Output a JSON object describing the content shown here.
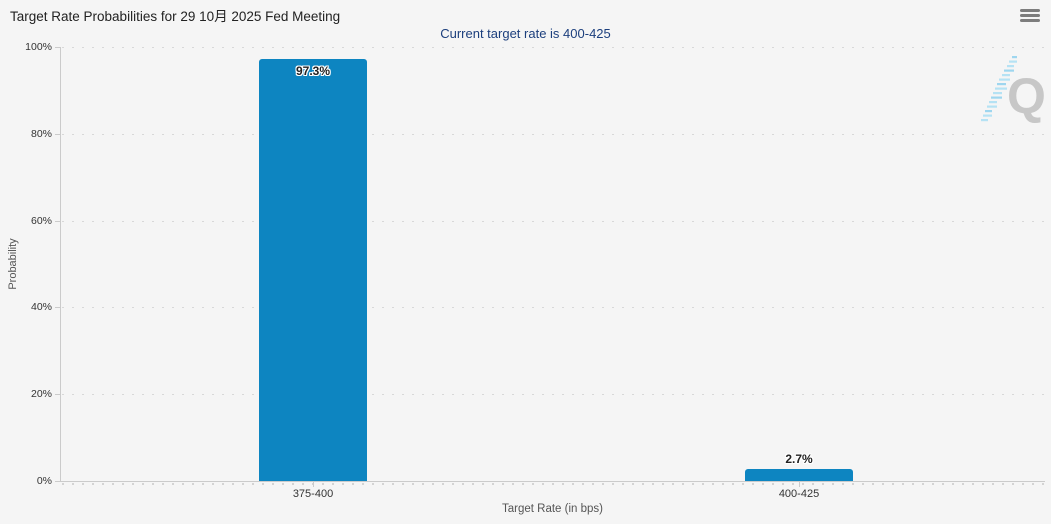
{
  "header": {
    "title": "Target Rate Probabilities for 29 10月 2025 Fed Meeting",
    "subtitle": "Current target rate is 400-425",
    "menu_icon": "hamburger-menu"
  },
  "chart_data": {
    "type": "bar",
    "title": "Target Rate Probabilities for 29 10月 2025 Fed Meeting",
    "subtitle": "Current target rate is 400-425",
    "categories": [
      "375-400",
      "400-425"
    ],
    "values": [
      97.3,
      2.7
    ],
    "value_labels": [
      "97.3%",
      "2.7%"
    ],
    "xlabel": "Target Rate (in bps)",
    "ylabel": "Probability",
    "ylim": [
      0,
      100
    ],
    "ytick_step": 20,
    "ytick_labels": [
      "0%",
      "20%",
      "40%",
      "60%",
      "80%",
      "100%"
    ],
    "grid": "dotted-horizontal",
    "legend": "none",
    "bar_color": "#0d85c1",
    "background_color": "#f5f5f5",
    "subtitle_color": "#1c3f7d"
  },
  "watermark": {
    "letter": "Q"
  }
}
